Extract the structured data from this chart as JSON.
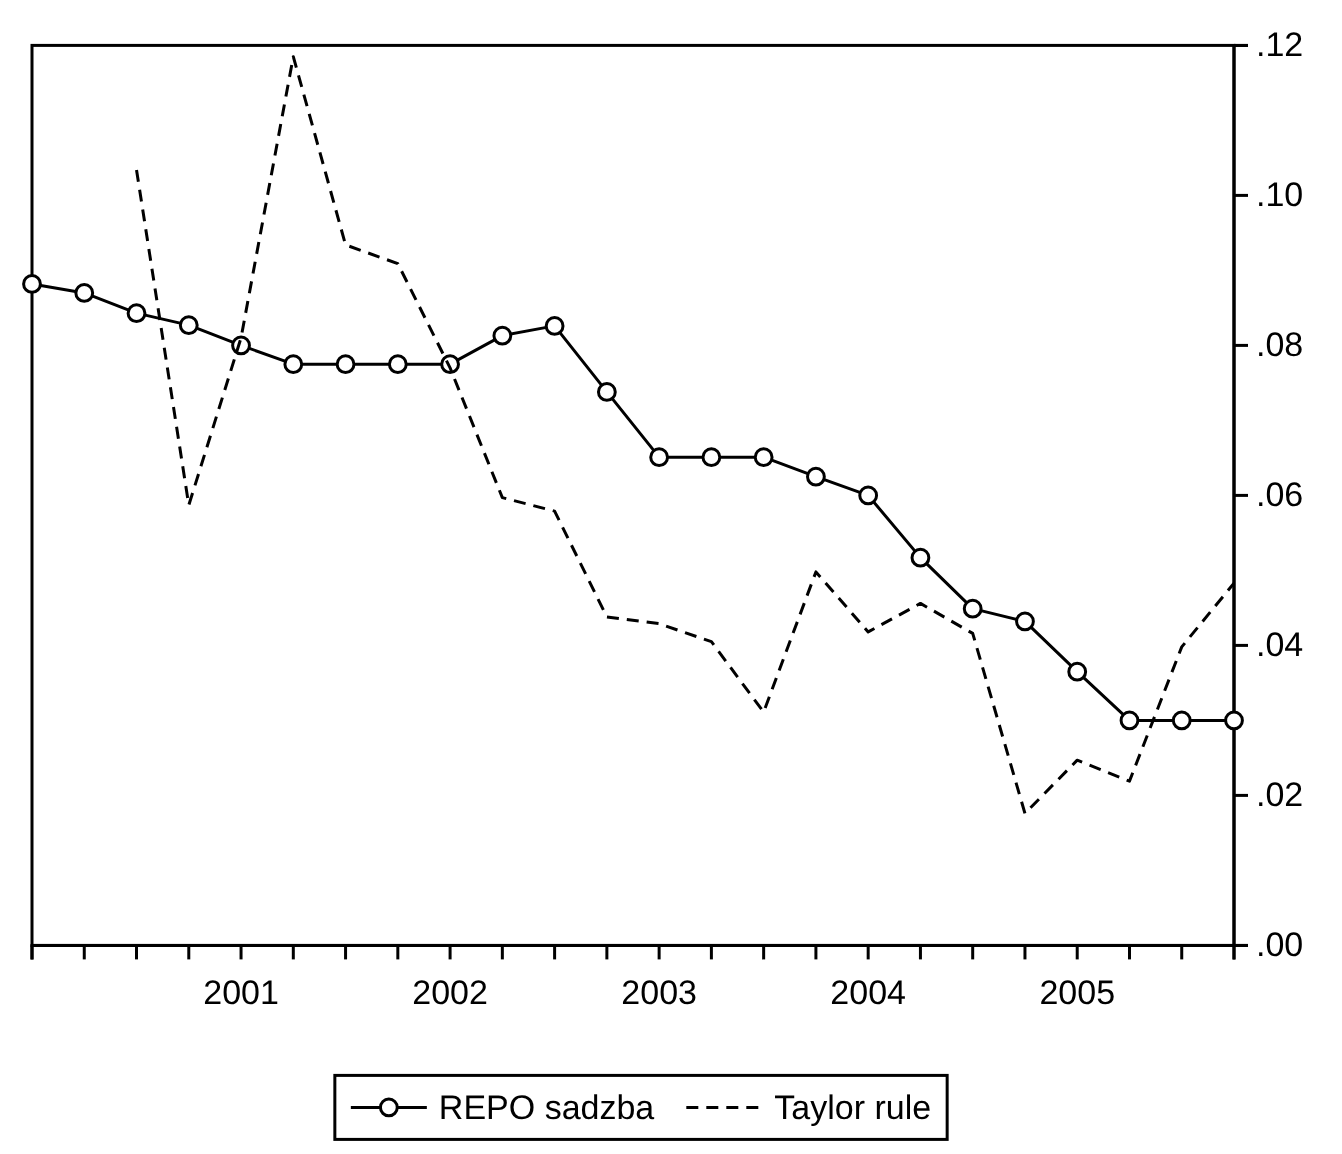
{
  "chart_data": {
    "type": "line",
    "categories": [
      null,
      null,
      null,
      null,
      "2001",
      null,
      null,
      null,
      "2002",
      null,
      null,
      null,
      "2003",
      null,
      null,
      null,
      "2004",
      null,
      null,
      null,
      "2005",
      null,
      null,
      null
    ],
    "series": [
      {
        "name": "REPO sadzba",
        "color": "#000000",
        "marker": "circle",
        "line_style": "solid",
        "values": [
          0.0882,
          0.087,
          0.0843,
          0.0827,
          0.08,
          0.0775,
          0.0775,
          0.0775,
          0.0775,
          0.0813,
          0.0826,
          0.0738,
          0.0651,
          0.0651,
          0.0651,
          0.0625,
          0.06,
          0.0517,
          0.0449,
          0.0432,
          0.0365,
          0.03,
          0.03,
          0.03
        ]
      },
      {
        "name": "Taylor rule",
        "color": "#000000",
        "marker": "none",
        "line_style": "dashed",
        "values": [
          null,
          null,
          0.1034,
          0.0587,
          0.081,
          0.1185,
          0.0934,
          0.0909,
          0.077,
          0.0597,
          0.0579,
          0.0438,
          0.0429,
          0.0405,
          0.0311,
          0.0498,
          0.0418,
          0.0456,
          0.0416,
          0.0176,
          0.0247,
          0.0219,
          0.0398,
          0.0483
        ]
      }
    ],
    "ylim": [
      0,
      0.12
    ],
    "yticks": [
      {
        "value": 0,
        "label": ".00"
      },
      {
        "value": 0.02,
        "label": ".02"
      },
      {
        "value": 0.04,
        "label": ".04"
      },
      {
        "value": 0.06,
        "label": ".06"
      },
      {
        "value": 0.08,
        "label": ".08"
      },
      {
        "value": 0.1,
        "label": ".10"
      },
      {
        "value": 0.12,
        "label": ".12"
      }
    ],
    "grid": false,
    "legend": "bottom"
  }
}
